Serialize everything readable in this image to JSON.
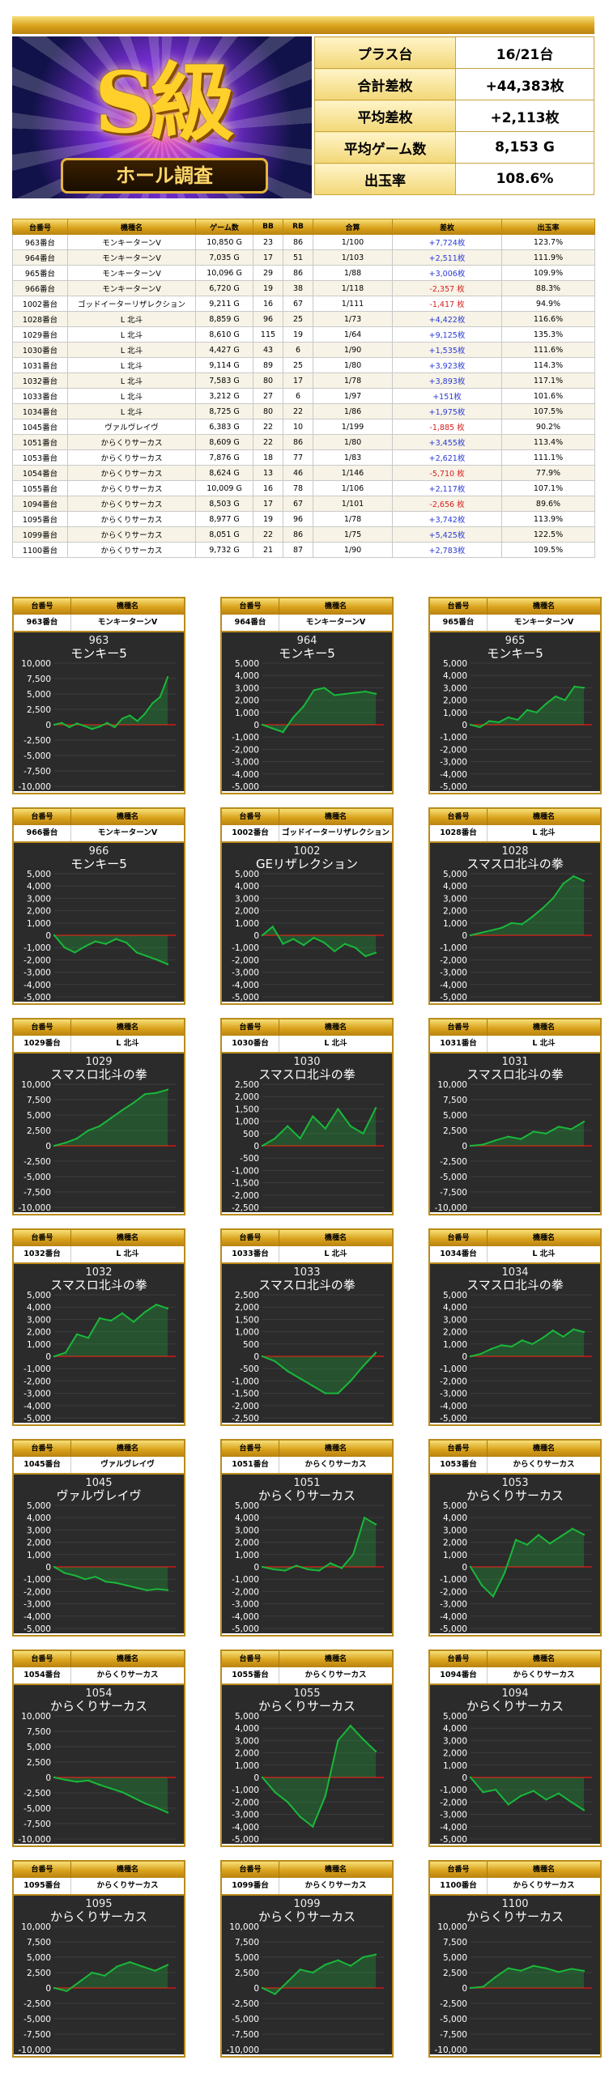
{
  "banner": {
    "title": "S級",
    "subtitle": "ホール調査"
  },
  "summary": [
    {
      "label": "プラス台",
      "value": "16/21台"
    },
    {
      "label": "合計差枚",
      "value": "+44,383枚"
    },
    {
      "label": "平均差枚",
      "value": "+2,113枚"
    },
    {
      "label": "平均ゲーム数",
      "value": "8,153 G"
    },
    {
      "label": "出玉率",
      "value": "108.6%"
    }
  ],
  "table": {
    "headers": [
      "台番号",
      "機種名",
      "ゲーム数",
      "BB",
      "RB",
      "合算",
      "差枚",
      "出玉率"
    ],
    "rows": [
      [
        "963番台",
        "モンキーターンV",
        "10,850 G",
        "23",
        "86",
        "1/100",
        "+7,724枚",
        "123.7%"
      ],
      [
        "964番台",
        "モンキーターンV",
        "7,035 G",
        "17",
        "51",
        "1/103",
        "+2,511枚",
        "111.9%"
      ],
      [
        "965番台",
        "モンキーターンV",
        "10,096 G",
        "29",
        "86",
        "1/88",
        "+3,006枚",
        "109.9%"
      ],
      [
        "966番台",
        "モンキーターンV",
        "6,720 G",
        "19",
        "38",
        "1/118",
        "-2,357 枚",
        "88.3%"
      ],
      [
        "1002番台",
        "ゴッドイーターリザレクション",
        "9,211 G",
        "16",
        "67",
        "1/111",
        "-1,417 枚",
        "94.9%"
      ],
      [
        "1028番台",
        "L 北斗",
        "8,859 G",
        "96",
        "25",
        "1/73",
        "+4,422枚",
        "116.6%"
      ],
      [
        "1029番台",
        "L 北斗",
        "8,610 G",
        "115",
        "19",
        "1/64",
        "+9,125枚",
        "135.3%"
      ],
      [
        "1030番台",
        "L 北斗",
        "4,427 G",
        "43",
        "6",
        "1/90",
        "+1,535枚",
        "111.6%"
      ],
      [
        "1031番台",
        "L 北斗",
        "9,114 G",
        "89",
        "25",
        "1/80",
        "+3,923枚",
        "114.3%"
      ],
      [
        "1032番台",
        "L 北斗",
        "7,583 G",
        "80",
        "17",
        "1/78",
        "+3,893枚",
        "117.1%"
      ],
      [
        "1033番台",
        "L 北斗",
        "3,212 G",
        "27",
        "6",
        "1/97",
        "+151枚",
        "101.6%"
      ],
      [
        "1034番台",
        "L 北斗",
        "8,725 G",
        "80",
        "22",
        "1/86",
        "+1,975枚",
        "107.5%"
      ],
      [
        "1045番台",
        "ヴァルヴレイヴ",
        "6,383 G",
        "22",
        "10",
        "1/199",
        "-1,885 枚",
        "90.2%"
      ],
      [
        "1051番台",
        "からくりサーカス",
        "8,609 G",
        "22",
        "86",
        "1/80",
        "+3,455枚",
        "113.4%"
      ],
      [
        "1053番台",
        "からくりサーカス",
        "7,876 G",
        "18",
        "77",
        "1/83",
        "+2,621枚",
        "111.1%"
      ],
      [
        "1054番台",
        "からくりサーカス",
        "8,624 G",
        "13",
        "46",
        "1/146",
        "-5,710 枚",
        "77.9%"
      ],
      [
        "1055番台",
        "からくりサーカス",
        "10,009 G",
        "16",
        "78",
        "1/106",
        "+2,117枚",
        "107.1%"
      ],
      [
        "1094番台",
        "からくりサーカス",
        "8,503 G",
        "17",
        "67",
        "1/101",
        "-2,656 枚",
        "89.6%"
      ],
      [
        "1095番台",
        "からくりサーカス",
        "8,977 G",
        "19",
        "96",
        "1/78",
        "+3,742枚",
        "113.9%"
      ],
      [
        "1099番台",
        "からくりサーカス",
        "8,051 G",
        "22",
        "86",
        "1/75",
        "+5,425枚",
        "122.5%"
      ],
      [
        "1100番台",
        "からくりサーカス",
        "9,732 G",
        "21",
        "87",
        "1/90",
        "+2,783枚",
        "109.5%"
      ]
    ]
  },
  "panel_headers": [
    "台番号",
    "機種名"
  ],
  "colors": {
    "gold": "#d9a21c",
    "chart_bg": "#2b2b2b",
    "line": "#19b83a",
    "zero_line": "#d01818",
    "plus": "#2a3bd8",
    "minus": "#d82020"
  },
  "chart_data": [
    {
      "type": "line",
      "machine": "963番台",
      "model": "モンキーターンV",
      "num": "963",
      "title": "モンキー5",
      "ylim": [
        -10000,
        10000
      ],
      "yticks": [
        "10,000",
        "7,500",
        "5,000",
        "2,500",
        "0",
        "-2,500",
        "-5,000",
        "-7,500",
        "-10,000"
      ],
      "values": [
        0,
        300,
        -400,
        200,
        -200,
        -700,
        -300,
        300,
        -400,
        1000,
        1500,
        600,
        1800,
        3500,
        4500,
        7724
      ]
    },
    {
      "type": "line",
      "machine": "964番台",
      "model": "モンキーターンV",
      "num": "964",
      "title": "モンキー5",
      "ylim": [
        -5000,
        5000
      ],
      "yticks": [
        "5,000",
        "4,000",
        "3,000",
        "2,000",
        "1,000",
        "0",
        "-1,000",
        "-2,000",
        "-3,000",
        "-4,000",
        "-5,000"
      ],
      "values": [
        0,
        -300,
        -600,
        600,
        1500,
        2800,
        3000,
        2400,
        2500,
        2600,
        2700,
        2511
      ]
    },
    {
      "type": "line",
      "machine": "965番台",
      "model": "モンキーターンV",
      "num": "965",
      "title": "モンキー5",
      "ylim": [
        -5000,
        5000
      ],
      "yticks": [
        "5,000",
        "4,000",
        "3,000",
        "2,000",
        "1,000",
        "0",
        "-1,000",
        "-2,000",
        "-3,000",
        "-4,000",
        "-5,000"
      ],
      "values": [
        0,
        -200,
        300,
        200,
        600,
        400,
        1200,
        1000,
        1700,
        2300,
        2000,
        3100,
        3006
      ]
    },
    {
      "type": "line",
      "machine": "966番台",
      "model": "モンキーターンV",
      "num": "966",
      "title": "モンキー5",
      "ylim": [
        -5000,
        5000
      ],
      "yticks": [
        "5,000",
        "4,000",
        "3,000",
        "2,000",
        "1,000",
        "0",
        "-1,000",
        "-2,000",
        "-3,000",
        "-4,000",
        "-5,000"
      ],
      "values": [
        0,
        -1000,
        -1400,
        -900,
        -500,
        -700,
        -300,
        -600,
        -1400,
        -1700,
        -2000,
        -2357
      ]
    },
    {
      "type": "line",
      "machine": "1002番台",
      "model": "ゴッドイーターリザレクション",
      "num": "1002",
      "title": "GEリザレクション",
      "ylim": [
        -5000,
        5000
      ],
      "yticks": [
        "5,000",
        "4,000",
        "3,000",
        "2,000",
        "1,000",
        "0",
        "-1,000",
        "-2,000",
        "-3,000",
        "-4,000",
        "-5,000"
      ],
      "values": [
        0,
        700,
        -700,
        -300,
        -800,
        -200,
        -600,
        -1300,
        -700,
        -1000,
        -1700,
        -1417
      ]
    },
    {
      "type": "line",
      "machine": "1028番台",
      "model": "L 北斗",
      "num": "1028",
      "title": "スマスロ北斗の拳",
      "ylim": [
        -5000,
        5000
      ],
      "yticks": [
        "5,000",
        "4,000",
        "3,000",
        "2,000",
        "1,000",
        "0",
        "-1,000",
        "-2,000",
        "-3,000",
        "-4,000",
        "-5,000"
      ],
      "values": [
        0,
        200,
        400,
        600,
        1000,
        900,
        1500,
        2200,
        3000,
        4200,
        4800,
        4422
      ]
    },
    {
      "type": "line",
      "machine": "1029番台",
      "model": "L 北斗",
      "num": "1029",
      "title": "スマスロ北斗の拳",
      "ylim": [
        -10000,
        10000
      ],
      "yticks": [
        "10,000",
        "7,500",
        "5,000",
        "2,500",
        "0",
        "-2,500",
        "-5,000",
        "-7,500",
        "-10,000"
      ],
      "values": [
        0,
        500,
        1200,
        2500,
        3200,
        4500,
        5800,
        7000,
        8400,
        8600,
        9125
      ]
    },
    {
      "type": "line",
      "machine": "1030番台",
      "model": "L 北斗",
      "num": "1030",
      "title": "スマスロ北斗の拳",
      "ylim": [
        -2500,
        2500
      ],
      "yticks": [
        "2,500",
        "2,000",
        "1,500",
        "1,000",
        "500",
        "0",
        "-500",
        "-1,000",
        "-1,500",
        "-2,000",
        "-2,500"
      ],
      "values": [
        0,
        300,
        800,
        300,
        1200,
        700,
        1500,
        800,
        500,
        1535
      ]
    },
    {
      "type": "line",
      "machine": "1031番台",
      "model": "L 北斗",
      "num": "1031",
      "title": "スマスロ北斗の拳",
      "ylim": [
        -10000,
        10000
      ],
      "yticks": [
        "10,000",
        "7,500",
        "5,000",
        "2,500",
        "0",
        "-2,500",
        "-5,000",
        "-7,500",
        "-10,000"
      ],
      "values": [
        0,
        200,
        900,
        1500,
        1100,
        2300,
        2000,
        3100,
        2700,
        3923
      ]
    },
    {
      "type": "line",
      "machine": "1032番台",
      "model": "L 北斗",
      "num": "1032",
      "title": "スマスロ北斗の拳",
      "ylim": [
        -5000,
        5000
      ],
      "yticks": [
        "5,000",
        "4,000",
        "3,000",
        "2,000",
        "1,000",
        "0",
        "-1,000",
        "-2,000",
        "-3,000",
        "-4,000",
        "-5,000"
      ],
      "values": [
        0,
        300,
        1800,
        1500,
        3100,
        2900,
        3500,
        2800,
        3600,
        4200,
        3893
      ]
    },
    {
      "type": "line",
      "machine": "1033番台",
      "model": "L 北斗",
      "num": "1033",
      "title": "スマスロ北斗の拳",
      "ylim": [
        -2500,
        2500
      ],
      "yticks": [
        "2,500",
        "2,000",
        "1,500",
        "1,000",
        "500",
        "0",
        "-500",
        "-1,000",
        "-1,500",
        "-2,000",
        "-2,500"
      ],
      "values": [
        0,
        -200,
        -600,
        -900,
        -1200,
        -1500,
        -1500,
        -1000,
        -400,
        151
      ]
    },
    {
      "type": "line",
      "machine": "1034番台",
      "model": "L 北斗",
      "num": "1034",
      "title": "スマスロ北斗の拳",
      "ylim": [
        -5000,
        5000
      ],
      "yticks": [
        "5,000",
        "4,000",
        "3,000",
        "2,000",
        "1,000",
        "0",
        "-1,000",
        "-2,000",
        "-3,000",
        "-4,000",
        "-5,000"
      ],
      "values": [
        0,
        200,
        600,
        900,
        800,
        1300,
        1000,
        1500,
        2100,
        1600,
        2200,
        1975
      ]
    },
    {
      "type": "line",
      "machine": "1045番台",
      "model": "ヴァルヴレイヴ",
      "num": "1045",
      "title": "ヴァルヴレイヴ",
      "ylim": [
        -5000,
        5000
      ],
      "yticks": [
        "5,000",
        "4,000",
        "3,000",
        "2,000",
        "1,000",
        "0",
        "-1,000",
        "-2,000",
        "-3,000",
        "-4,000",
        "-5,000"
      ],
      "values": [
        0,
        -500,
        -700,
        -1000,
        -800,
        -1200,
        -1300,
        -1500,
        -1700,
        -1900,
        -1800,
        -1885
      ]
    },
    {
      "type": "line",
      "machine": "1051番台",
      "model": "からくりサーカス",
      "num": "1051",
      "title": "からくりサーカス",
      "ylim": [
        -5000,
        5000
      ],
      "yticks": [
        "5,000",
        "4,000",
        "3,000",
        "2,000",
        "1,000",
        "0",
        "-1,000",
        "-2,000",
        "-3,000",
        "-4,000",
        "-5,000"
      ],
      "values": [
        0,
        -200,
        -300,
        100,
        -200,
        -300,
        300,
        -100,
        1000,
        4000,
        3455
      ]
    },
    {
      "type": "line",
      "machine": "1053番台",
      "model": "からくりサーカス",
      "num": "1053",
      "title": "からくりサーカス",
      "ylim": [
        -5000,
        5000
      ],
      "yticks": [
        "5,000",
        "4,000",
        "3,000",
        "2,000",
        "1,000",
        "0",
        "-1,000",
        "-2,000",
        "-3,000",
        "-4,000",
        "-5,000"
      ],
      "values": [
        0,
        -1500,
        -2400,
        -500,
        2200,
        1800,
        2600,
        1900,
        2500,
        3100,
        2621
      ]
    },
    {
      "type": "line",
      "machine": "1054番台",
      "model": "からくりサーカス",
      "num": "1054",
      "title": "からくりサーカス",
      "ylim": [
        -10000,
        10000
      ],
      "yticks": [
        "10,000",
        "7,500",
        "5,000",
        "2,500",
        "0",
        "-2,500",
        "-5,000",
        "-7,500",
        "-10,000"
      ],
      "values": [
        0,
        -400,
        -700,
        -500,
        -1200,
        -1800,
        -2400,
        -3300,
        -4200,
        -4900,
        -5710
      ]
    },
    {
      "type": "line",
      "machine": "1055番台",
      "model": "からくりサーカス",
      "num": "1055",
      "title": "からくりサーカス",
      "ylim": [
        -5000,
        5000
      ],
      "yticks": [
        "5,000",
        "4,000",
        "3,000",
        "2,000",
        "1,000",
        "0",
        "-1,000",
        "-2,000",
        "-3,000",
        "-4,000",
        "-5,000"
      ],
      "values": [
        0,
        -1200,
        -2000,
        -3200,
        -4000,
        -1500,
        3000,
        4200,
        3100,
        2117
      ]
    },
    {
      "type": "line",
      "machine": "1094番台",
      "model": "からくりサーカス",
      "num": "1094",
      "title": "からくりサーカス",
      "ylim": [
        -5000,
        5000
      ],
      "yticks": [
        "5,000",
        "4,000",
        "3,000",
        "2,000",
        "1,000",
        "0",
        "-1,000",
        "-2,000",
        "-3,000",
        "-4,000",
        "-5,000"
      ],
      "values": [
        0,
        -1200,
        -1000,
        -2200,
        -1500,
        -1100,
        -1800,
        -1300,
        -2000,
        -2656
      ]
    },
    {
      "type": "line",
      "machine": "1095番台",
      "model": "からくりサーカス",
      "num": "1095",
      "title": "からくりサーカス",
      "ylim": [
        -10000,
        10000
      ],
      "yticks": [
        "10,000",
        "7,500",
        "5,000",
        "2,500",
        "0",
        "-2,500",
        "-5,000",
        "-7,500",
        "-10,000"
      ],
      "values": [
        0,
        -500,
        1000,
        2500,
        2000,
        3500,
        4200,
        3500,
        2800,
        3742
      ]
    },
    {
      "type": "line",
      "machine": "1099番台",
      "model": "からくりサーカス",
      "num": "1099",
      "title": "からくりサーカス",
      "ylim": [
        -10000,
        10000
      ],
      "yticks": [
        "10,000",
        "7,500",
        "5,000",
        "2,500",
        "0",
        "-2,500",
        "-5,000",
        "-7,500",
        "-10,000"
      ],
      "values": [
        0,
        -1000,
        1000,
        3000,
        2500,
        3800,
        4500,
        3600,
        5000,
        5425
      ]
    },
    {
      "type": "line",
      "machine": "1100番台",
      "model": "からくりサーカス",
      "num": "1100",
      "title": "からくりサーカス",
      "ylim": [
        -10000,
        10000
      ],
      "yticks": [
        "10,000",
        "7,500",
        "5,000",
        "2,500",
        "0",
        "-2,500",
        "-5,000",
        "-7,500",
        "-10,000"
      ],
      "values": [
        0,
        200,
        1800,
        3200,
        2800,
        3600,
        3200,
        2600,
        3100,
        2783
      ]
    }
  ]
}
